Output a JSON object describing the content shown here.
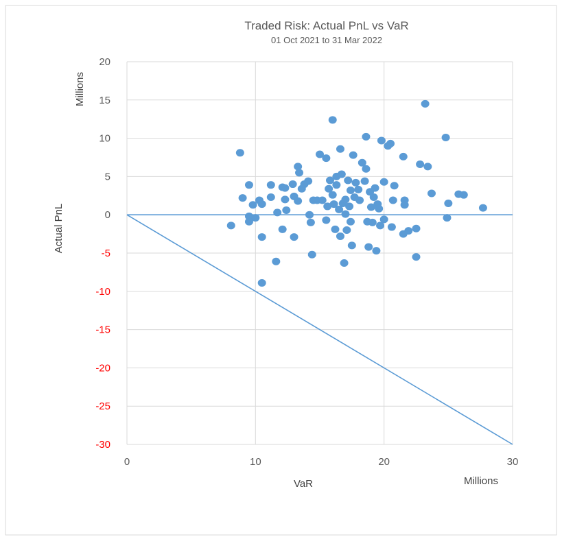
{
  "chart_data": {
    "type": "scatter",
    "title": "Traded Risk: Actual PnL vs VaR",
    "subtitle": "01 Oct 2021 to 31 Mar 2022",
    "xlabel": "VaR",
    "ylabel": "Actual PnL",
    "x_units": "Millions",
    "y_units": "Millions",
    "xlim": [
      0,
      30
    ],
    "ylim": [
      -30,
      20
    ],
    "x_ticks": [
      0,
      10,
      20,
      30
    ],
    "y_ticks": [
      20,
      15,
      10,
      5,
      0,
      -5,
      -10,
      -15,
      -20,
      -25,
      -30
    ],
    "grid": true,
    "colors": {
      "points": "#5b9bd5",
      "line": "#5b9bd5",
      "grid": "#d9d9d9",
      "tick_positive": "#595959",
      "tick_negative": "#ff0000"
    },
    "reference_lines": [
      {
        "points": [
          [
            0,
            0
          ],
          [
            30,
            0
          ]
        ]
      },
      {
        "points": [
          [
            0,
            0
          ],
          [
            30,
            -30
          ]
        ]
      }
    ],
    "series": [
      {
        "points": [
          [
            8.1,
            -1.4
          ],
          [
            8.8,
            8.1
          ],
          [
            9.0,
            2.2
          ],
          [
            9.5,
            3.9
          ],
          [
            9.5,
            -0.2
          ],
          [
            9.5,
            -0.9
          ],
          [
            9.8,
            1.3
          ],
          [
            10.0,
            -0.4
          ],
          [
            10.3,
            1.9
          ],
          [
            10.5,
            1.4
          ],
          [
            10.5,
            -2.9
          ],
          [
            10.5,
            -8.9
          ],
          [
            11.2,
            3.9
          ],
          [
            11.2,
            2.3
          ],
          [
            11.6,
            -6.1
          ],
          [
            11.7,
            0.3
          ],
          [
            12.1,
            3.6
          ],
          [
            12.1,
            -1.9
          ],
          [
            12.3,
            2.0
          ],
          [
            12.3,
            3.5
          ],
          [
            12.4,
            0.6
          ],
          [
            12.9,
            4.0
          ],
          [
            13.0,
            2.4
          ],
          [
            13.0,
            -2.9
          ],
          [
            13.3,
            6.3
          ],
          [
            13.3,
            1.8
          ],
          [
            13.4,
            5.5
          ],
          [
            13.6,
            3.4
          ],
          [
            13.8,
            4.0
          ],
          [
            14.1,
            4.4
          ],
          [
            14.2,
            0.0
          ],
          [
            14.3,
            -1.0
          ],
          [
            14.4,
            -5.2
          ],
          [
            14.5,
            1.9
          ],
          [
            14.8,
            1.9
          ],
          [
            15.0,
            7.9
          ],
          [
            15.2,
            1.9
          ],
          [
            15.5,
            7.4
          ],
          [
            15.5,
            -0.7
          ],
          [
            15.6,
            1.1
          ],
          [
            15.7,
            3.4
          ],
          [
            15.8,
            4.5
          ],
          [
            16.0,
            2.6
          ],
          [
            16.0,
            12.4
          ],
          [
            16.1,
            1.4
          ],
          [
            16.2,
            -1.9
          ],
          [
            16.3,
            3.9
          ],
          [
            16.3,
            5.0
          ],
          [
            16.5,
            0.7
          ],
          [
            16.6,
            -2.8
          ],
          [
            16.6,
            8.6
          ],
          [
            16.7,
            5.3
          ],
          [
            16.8,
            1.5
          ],
          [
            16.9,
            -6.3
          ],
          [
            17.0,
            2.0
          ],
          [
            17.0,
            0.1
          ],
          [
            17.1,
            -2.0
          ],
          [
            17.2,
            4.5
          ],
          [
            17.3,
            1.1
          ],
          [
            17.4,
            3.2
          ],
          [
            17.4,
            -0.9
          ],
          [
            17.5,
            -4.0
          ],
          [
            17.6,
            7.8
          ],
          [
            17.7,
            2.3
          ],
          [
            17.8,
            4.2
          ],
          [
            18.0,
            3.3
          ],
          [
            18.1,
            1.9
          ],
          [
            18.3,
            6.8
          ],
          [
            18.5,
            4.4
          ],
          [
            18.6,
            6.0
          ],
          [
            18.6,
            10.2
          ],
          [
            18.7,
            -0.9
          ],
          [
            18.8,
            -4.2
          ],
          [
            18.9,
            3.0
          ],
          [
            19.0,
            1.0
          ],
          [
            19.1,
            -1.0
          ],
          [
            19.2,
            2.3
          ],
          [
            19.3,
            3.5
          ],
          [
            19.4,
            -4.7
          ],
          [
            19.5,
            1.4
          ],
          [
            19.6,
            0.8
          ],
          [
            19.7,
            -1.4
          ],
          [
            19.8,
            9.7
          ],
          [
            20.0,
            4.3
          ],
          [
            20.0,
            -0.6
          ],
          [
            20.3,
            9.0
          ],
          [
            20.5,
            9.3
          ],
          [
            20.6,
            -1.6
          ],
          [
            20.7,
            1.9
          ],
          [
            20.8,
            3.8
          ],
          [
            21.5,
            7.6
          ],
          [
            21.5,
            -2.5
          ],
          [
            21.6,
            1.9
          ],
          [
            21.6,
            1.3
          ],
          [
            21.9,
            -2.1
          ],
          [
            22.5,
            -5.5
          ],
          [
            22.5,
            -1.8
          ],
          [
            22.8,
            6.6
          ],
          [
            23.2,
            14.5
          ],
          [
            23.4,
            6.3
          ],
          [
            23.7,
            2.8
          ],
          [
            24.8,
            10.1
          ],
          [
            24.9,
            -0.4
          ],
          [
            25.0,
            1.5
          ],
          [
            25.8,
            2.7
          ],
          [
            26.2,
            2.6
          ],
          [
            27.7,
            0.9
          ]
        ]
      }
    ]
  }
}
